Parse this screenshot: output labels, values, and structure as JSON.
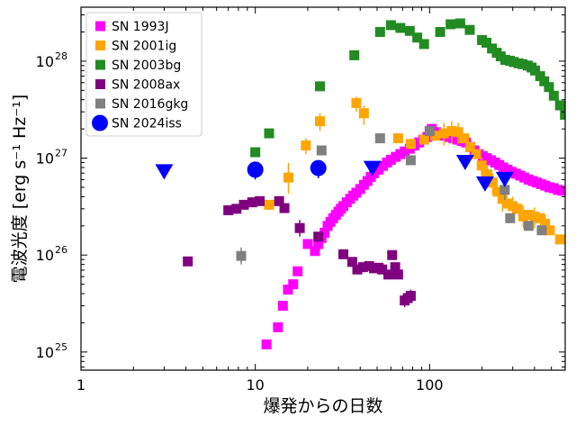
{
  "chart_data": {
    "type": "scatter",
    "title": "",
    "xlabel": "爆発からの日数",
    "ylabel": "電波光度 [erg s⁻¹ Hz⁻¹]",
    "xscale": "log",
    "yscale": "log",
    "xlim": [
      1,
      600
    ],
    "ylim": [
      6.5e+24,
      3.6e+28
    ],
    "x_ticks": [
      {
        "value": 1,
        "label": "1"
      },
      {
        "value": 10,
        "label": "10"
      },
      {
        "value": 100,
        "label": "100"
      }
    ],
    "y_ticks": [
      {
        "value": 1e+25,
        "base": "10",
        "exp": "25"
      },
      {
        "value": 1e+26,
        "base": "10",
        "exp": "26"
      },
      {
        "value": 1e+27,
        "base": "10",
        "exp": "27"
      },
      {
        "value": 1e+28,
        "base": "10",
        "exp": "28"
      }
    ],
    "grid": false,
    "legend_position": "top-left",
    "series": [
      {
        "name": "SN 1993J",
        "color": "#ff00ff",
        "marker": "square",
        "points": [
          [
            11.6,
            1.2e+25
          ],
          [
            13.5,
            1.8e+25
          ],
          [
            14.4,
            3e+25
          ],
          [
            15.4,
            4.4e+25
          ],
          [
            16.5,
            5e+25
          ],
          [
            17.5,
            6.8e+25
          ],
          [
            20,
            1.3e+26
          ],
          [
            22,
            1.1e+26
          ],
          [
            23,
            1.3e+26
          ],
          [
            24,
            1.5e+26
          ],
          [
            25,
            1.7e+26
          ],
          [
            26,
            2e+26
          ],
          [
            27,
            2.2e+26
          ],
          [
            28,
            2.4e+26
          ],
          [
            29,
            2.6e+26
          ],
          [
            30,
            2.8e+26
          ],
          [
            31,
            3e+26
          ],
          [
            32,
            3.2e+26
          ],
          [
            33.5,
            3.5e+26
          ],
          [
            35,
            3.8e+26
          ],
          [
            36.5,
            4.1e+26
          ],
          [
            38,
            4.4e+26
          ],
          [
            40,
            4.8e+26
          ],
          [
            42,
            5.3e+26
          ],
          [
            44,
            5.8e+26
          ],
          [
            46,
            6.4e+26
          ],
          [
            48,
            7e+26
          ],
          [
            51,
            7.6e+26
          ],
          [
            54,
            8.3e+26
          ],
          [
            57,
            9e+26
          ],
          [
            60,
            9.6e+26
          ],
          [
            64,
            1.03e+27
          ],
          [
            68,
            1.1e+27
          ],
          [
            72,
            1.17e+27
          ],
          [
            77,
            1.25e+27
          ],
          [
            82,
            1.35e+27
          ],
          [
            87,
            1.45e+27
          ],
          [
            92,
            1.55e+27
          ],
          [
            97,
            1.65e+27
          ],
          [
            103,
            2e+27
          ],
          [
            109,
            1.85e+27
          ],
          [
            115,
            1.75e+27
          ],
          [
            122,
            1.7e+27
          ],
          [
            129,
            1.65e+27
          ],
          [
            137,
            1.6e+27
          ],
          [
            145,
            1.55e+27
          ],
          [
            153,
            1.5e+27
          ],
          [
            162,
            1.45e+27
          ],
          [
            171,
            1.3e+27
          ],
          [
            181,
            1.2e+27
          ],
          [
            191,
            1.1e+27
          ],
          [
            202,
            1.05e+27
          ],
          [
            213,
            1e+27
          ],
          [
            225,
            9.5e+26
          ],
          [
            238,
            9e+26
          ],
          [
            251,
            8.5e+26
          ],
          [
            265,
            8e+26
          ],
          [
            280,
            7.6e+26
          ],
          [
            296,
            7.2e+26
          ],
          [
            313,
            6.9e+26
          ],
          [
            331,
            6.6e+26
          ],
          [
            350,
            6.3e+26
          ],
          [
            370,
            6e+26
          ],
          [
            391,
            5.8e+26
          ],
          [
            413,
            5.6e+26
          ],
          [
            436,
            5.4e+26
          ],
          [
            461,
            5.2e+26
          ],
          [
            487,
            5e+26
          ],
          [
            515,
            4.9e+26
          ],
          [
            545,
            4.7e+26
          ],
          [
            580,
            4.6e+26
          ]
        ]
      },
      {
        "name": "SN 2001ig",
        "color": "#ffa500",
        "marker": "square",
        "points": [
          [
            12,
            3.3e+26
          ],
          [
            15.5,
            6.3e+26
          ],
          [
            19.5,
            1.35e+27
          ],
          [
            23.5,
            2.4e+27
          ],
          [
            38,
            3.7e+27
          ],
          [
            42,
            2.9e+27
          ],
          [
            66,
            1.6e+27
          ],
          [
            78,
            1.4e+27
          ],
          [
            93,
            1.55e+27
          ],
          [
            108,
            1.7e+27
          ],
          [
            121,
            1.8e+27
          ],
          [
            134,
            1.9e+27
          ],
          [
            146,
            1.85e+27
          ],
          [
            158,
            1.6e+27
          ],
          [
            171,
            1.3e+27
          ],
          [
            185,
            1.1e+27
          ],
          [
            199,
            8.4e+26
          ],
          [
            214,
            6.8e+26
          ],
          [
            230,
            5.6e+26
          ],
          [
            246,
            4.5e+26
          ],
          [
            262,
            3.8e+26
          ],
          [
            280,
            3.4e+26
          ],
          [
            300,
            3.2e+26
          ],
          [
            320,
            3e+26
          ],
          [
            345,
            2.5e+26
          ],
          [
            370,
            2.6e+26
          ],
          [
            400,
            2.5e+26
          ],
          [
            430,
            2.4e+26
          ],
          [
            460,
            2.1e+26
          ],
          [
            490,
            1.8e+26
          ],
          [
            560,
            1.45e+26
          ]
        ],
        "error_y": [
          [
            15.5,
            4.3e+26,
            8.9e+26
          ],
          [
            19.5,
            1.1e+27,
            1.6e+27
          ],
          [
            23.5,
            1.9e+27,
            2.9e+27
          ],
          [
            38,
            3e+27,
            4.3e+27
          ],
          [
            42,
            2.2e+27,
            3.5e+27
          ],
          [
            121,
            1.35e+27,
            2.3e+27
          ],
          [
            134,
            1.4e+27,
            2.4e+27
          ],
          [
            146,
            1.4e+27,
            2.3e+27
          ],
          [
            199,
            6.5e+26,
            1e+27
          ],
          [
            214,
            5.2e+26,
            8.5e+26
          ],
          [
            230,
            4.2e+26,
            7e+26
          ],
          [
            262,
            2.8e+26,
            4.8e+26
          ],
          [
            300,
            2.4e+26,
            4e+26
          ],
          [
            345,
            1.9e+26,
            3.2e+26
          ],
          [
            400,
            1.9e+26,
            3.1e+26
          ],
          [
            460,
            1.6e+26,
            2.6e+26
          ]
        ]
      },
      {
        "name": "SN 2003bg",
        "color": "#228b22",
        "marker": "square",
        "points": [
          [
            10,
            1.15e+27
          ],
          [
            12,
            1.8e+27
          ],
          [
            23.5,
            5.5e+27
          ],
          [
            37,
            1.15e+28
          ],
          [
            52,
            2e+28
          ],
          [
            60,
            2.35e+28
          ],
          [
            68,
            2.2e+28
          ],
          [
            77,
            2.05e+28
          ],
          [
            85,
            1.75e+28
          ],
          [
            93,
            1.5e+28
          ],
          [
            115,
            2e+28
          ],
          [
            132,
            2.4e+28
          ],
          [
            150,
            2.45e+28
          ],
          [
            170,
            2.1e+28
          ],
          [
            200,
            1.65e+28
          ],
          [
            212,
            1.55e+28
          ],
          [
            228,
            1.35e+28
          ],
          [
            243,
            1.22e+28
          ],
          [
            256,
            1.12e+28
          ],
          [
            272,
            1.03e+28
          ],
          [
            289,
            1.01e+28
          ],
          [
            304,
            9.8e+27
          ],
          [
            324,
            9.5e+27
          ],
          [
            342,
            9.3e+27
          ],
          [
            366,
            9e+27
          ],
          [
            385,
            8.6e+27
          ],
          [
            403,
            8e+27
          ],
          [
            431,
            7e+27
          ],
          [
            455,
            6.2e+27
          ],
          [
            484,
            5.4e+27
          ],
          [
            516,
            4.4e+27
          ],
          [
            560,
            3.5e+27
          ],
          [
            598,
            2.8e+27
          ]
        ]
      },
      {
        "name": "SN 2008ax",
        "color": "#800080",
        "marker": "square",
        "points": [
          [
            4.1,
            8.6e+25
          ],
          [
            7,
            2.9e+26
          ],
          [
            7.8,
            3e+26
          ],
          [
            8.6,
            3.3e+26
          ],
          [
            9.6,
            3.5e+26
          ],
          [
            10.6,
            3.6e+26
          ],
          [
            13.7,
            3.6e+26
          ],
          [
            14.7,
            3.05e+26
          ],
          [
            18,
            1.9e+26
          ],
          [
            23,
            1.55e+26
          ],
          [
            32,
            1.02e+26
          ],
          [
            36,
            8.5e+25
          ],
          [
            38.5,
            7.1e+25
          ],
          [
            41.5,
            7.5e+25
          ],
          [
            45,
            7.7e+25
          ],
          [
            48,
            7.3e+25
          ],
          [
            51,
            7.4e+25
          ],
          [
            53.5,
            7.1e+25
          ],
          [
            58,
            6.3e+25
          ],
          [
            61,
            1e+26
          ],
          [
            63.5,
            7.5e+25
          ],
          [
            66,
            6.3e+25
          ],
          [
            72,
            3.4e+25
          ],
          [
            75,
            3.6e+25
          ],
          [
            78,
            3.8e+25
          ]
        ],
        "error_y": [
          [
            18,
            1.55e+26,
            2.3e+26
          ],
          [
            72,
            2.9e+25,
            4e+25
          ],
          [
            78,
            3.3e+25,
            4.4e+25
          ]
        ]
      },
      {
        "name": "SN 2016gkg",
        "color": "#808080",
        "marker": "square",
        "points": [
          [
            8.3,
            9.8e+25
          ],
          [
            24,
            1.2e+27
          ],
          [
            52,
            1.6e+27
          ],
          [
            78,
            9.5e+26
          ],
          [
            100,
            1.9e+27
          ],
          [
            270,
            4.7e+26
          ],
          [
            290,
            2.4e+26
          ],
          [
            370,
            2e+26
          ],
          [
            440,
            1.8e+26
          ]
        ],
        "error_y": [
          [
            8.3,
            8e+25,
            1.2e+26
          ],
          [
            270,
            3.7e+26,
            5.7e+26
          ]
        ]
      },
      {
        "name": "SN 2024iss",
        "color": "#0000ff",
        "marker": "circle",
        "points": [
          [
            10,
            7.6e+26
          ],
          [
            23,
            7.9e+26
          ]
        ],
        "error_y": [
          [
            10,
            6e+26,
            9.2e+26
          ],
          [
            23,
            6.2e+26,
            9.5e+26
          ]
        ]
      },
      {
        "name": "SN 2024iss upper limits",
        "color": "#0000ff",
        "marker": "triangle-down",
        "points": [
          [
            3,
            7.2e+26
          ],
          [
            47,
            7.8e+26
          ],
          [
            160,
            9e+26
          ],
          [
            208,
            5.4e+26
          ],
          [
            270,
            6e+26
          ]
        ]
      }
    ],
    "legend": [
      {
        "label": "SN 1993J",
        "color": "#ff00ff",
        "marker": "square"
      },
      {
        "label": "SN 2001ig",
        "color": "#ffa500",
        "marker": "square"
      },
      {
        "label": "SN 2003bg",
        "color": "#228b22",
        "marker": "square"
      },
      {
        "label": "SN 2008ax",
        "color": "#800080",
        "marker": "square"
      },
      {
        "label": "SN 2016gkg",
        "color": "#808080",
        "marker": "square"
      },
      {
        "label": "SN 2024iss",
        "color": "#0000ff",
        "marker": "circle"
      }
    ]
  }
}
